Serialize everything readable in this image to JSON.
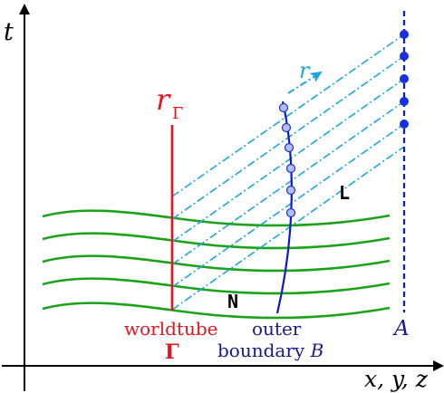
{
  "axes": {
    "t_label": "t",
    "x_label": "x, y, z"
  },
  "labels": {
    "r_gamma_main": "r",
    "r_gamma_sub": "Γ",
    "r_arrow": "r",
    "L": "L",
    "N": "N",
    "worldtube_line1": "worldtube",
    "worldtube_line2": "Γ",
    "outer_line1": "outer",
    "outer_line2_prefix": "boundary ",
    "outer_line2_var": "B",
    "A": "A"
  },
  "colors": {
    "axis": "#000000",
    "worldtube": "#e8141c",
    "slices": "#1aa31a",
    "characteristics": "#1ca6df",
    "boundary": "#0a1bc8",
    "boundary_label": "#1a1a8c",
    "points": "#1530e8",
    "points_light": "#b8bdf0"
  }
}
